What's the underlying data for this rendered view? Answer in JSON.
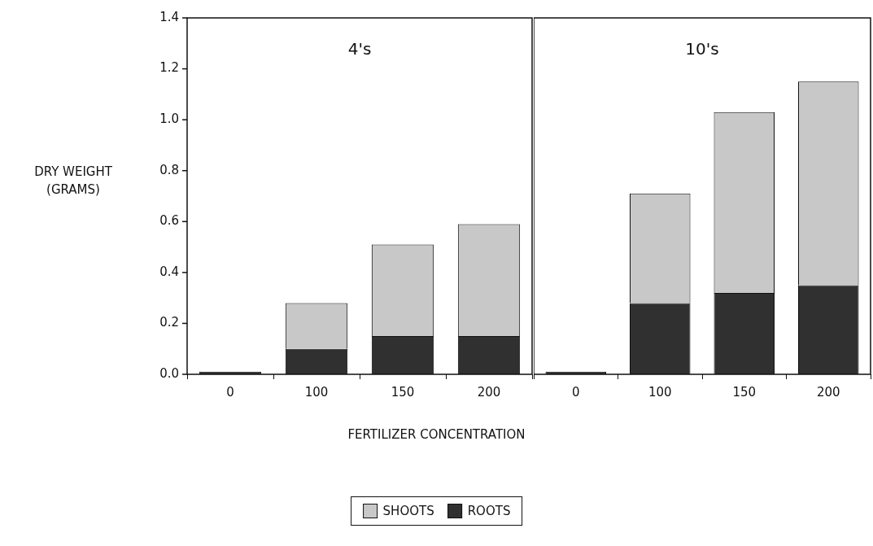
{
  "chart_data": [
    {
      "type": "bar",
      "title": "4's",
      "ylabel": "DRY WEIGHT (GRAMS)",
      "xlabel": "FERTILIZER CONCENTRATION",
      "categories": [
        "0",
        "100",
        "150",
        "200"
      ],
      "stacked": true,
      "legend": "bottom",
      "series": [
        {
          "name": "ROOTS",
          "color": "#303030",
          "values": [
            0.01,
            0.1,
            0.15,
            0.15
          ]
        },
        {
          "name": "SHOOTS",
          "color": "#c8c8c8",
          "values": [
            0,
            0.18,
            0.36,
            0.44
          ]
        }
      ],
      "ylim": [
        0,
        1.4
      ],
      "yticks": [
        {
          "value": 0,
          "label": "0.0"
        },
        0.2,
        0.4,
        0.6,
        0.8,
        {
          "value": 1,
          "label": "1.0"
        },
        1.2,
        1.4
      ]
    },
    {
      "type": "bar",
      "title": "10's",
      "categories": [
        "0",
        "100",
        "150",
        "200"
      ],
      "stacked": true,
      "tick_labels": "x",
      "series": [
        {
          "color": "#303030",
          "values": [
            0.01,
            0.28,
            0.32,
            0.35
          ]
        },
        {
          "color": "#c8c8c8",
          "values": [
            0,
            0.43,
            0.71,
            0.8
          ]
        }
      ],
      "ylim": [
        0,
        1.4
      ]
    }
  ]
}
